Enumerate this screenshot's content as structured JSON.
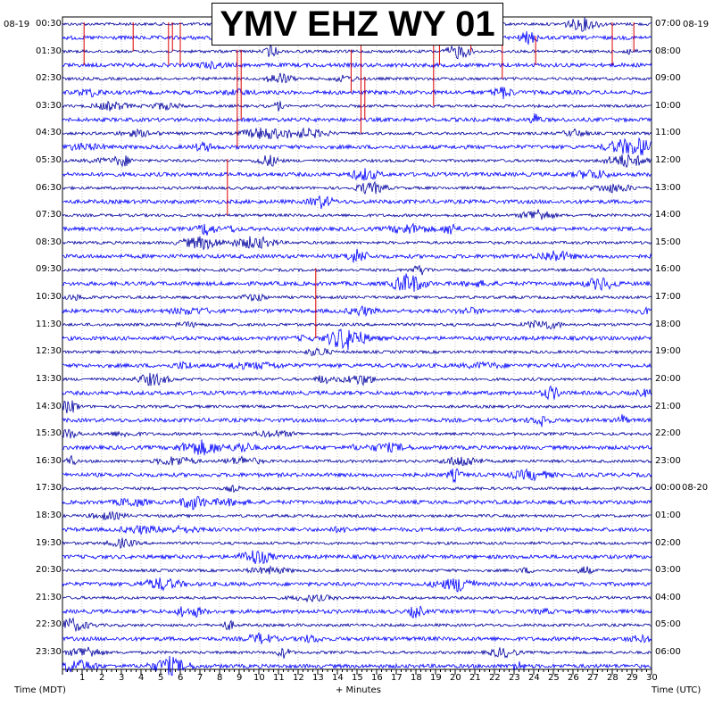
{
  "chart_data": {
    "type": "helicorder",
    "title": "YMV EHZ WY 01",
    "left_date": "08-19",
    "right_date": "08-19",
    "next_day_marker": "08-20",
    "xlabel": "+ Minutes",
    "xlabel_left": "Time (MDT)",
    "xlabel_right": "Time (UTC)",
    "x_ticks": [
      "1",
      "2",
      "3",
      "4",
      "5",
      "6",
      "7",
      "8",
      "9",
      "10",
      "11",
      "12",
      "13",
      "14",
      "15",
      "16",
      "17",
      "18",
      "19",
      "20",
      "21",
      "22",
      "23",
      "24",
      "25",
      "26",
      "27",
      "28",
      "29",
      "30"
    ],
    "xlim": [
      0,
      30
    ],
    "rows_per_hour": 2,
    "row_count": 48,
    "left_hour_labels": [
      "00:30",
      "01:30",
      "02:30",
      "03:30",
      "04:30",
      "05:30",
      "06:30",
      "07:30",
      "08:30",
      "09:30",
      "10:30",
      "11:30",
      "12:30",
      "13:30",
      "14:30",
      "15:30",
      "16:30",
      "17:30",
      "18:30",
      "19:30",
      "20:30",
      "21:30",
      "22:30",
      "23:30"
    ],
    "right_hour_labels": [
      "07:00",
      "08:00",
      "09:00",
      "10:00",
      "11:00",
      "12:00",
      "13:00",
      "14:00",
      "15:00",
      "16:00",
      "17:00",
      "18:00",
      "19:00",
      "20:00",
      "21:00",
      "22:00",
      "23:00",
      "00:00",
      "01:00",
      "02:00",
      "03:00",
      "04:00",
      "05:00",
      "06:00"
    ],
    "trace_colors": [
      "#0000a0",
      "#0000ff"
    ],
    "clip_color": "#dd0000",
    "background": "#ffffff",
    "grid": true
  }
}
